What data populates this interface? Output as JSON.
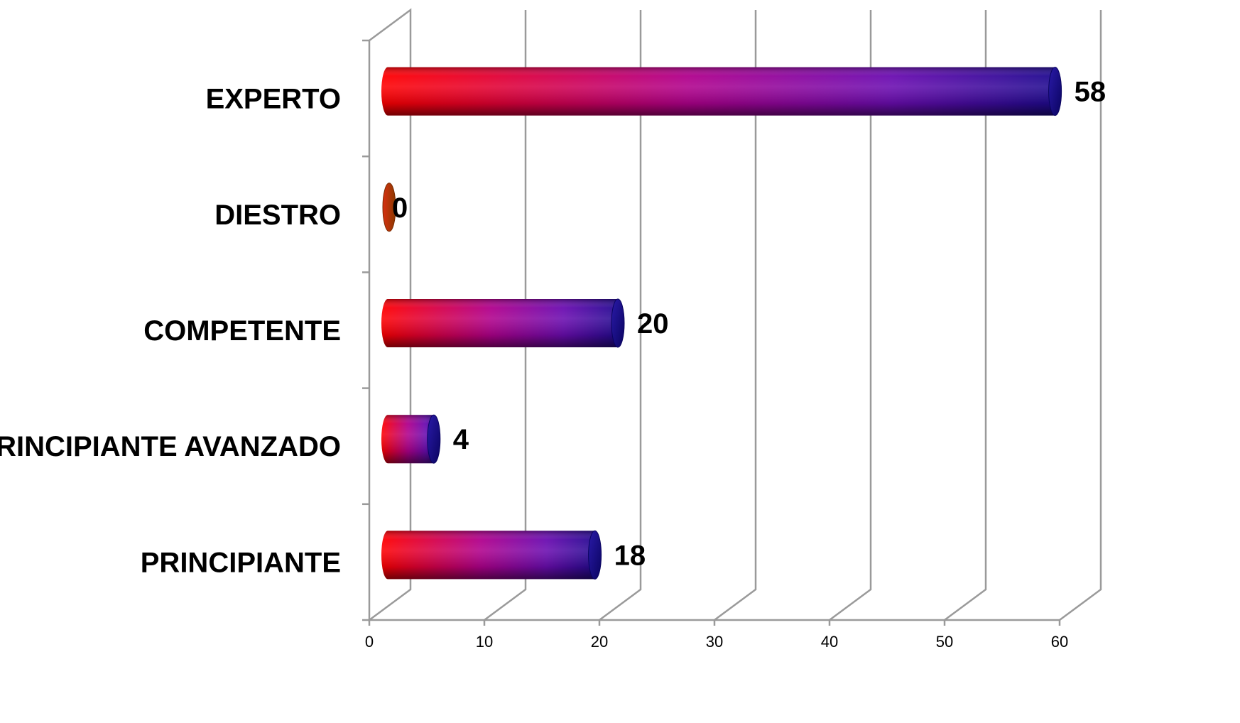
{
  "chart_data": {
    "type": "bar",
    "orientation": "horizontal",
    "style": "3d-cylinder",
    "categories": [
      "PRINCIPIANTE",
      "PRINCIPIANTE AVANZADO",
      "COMPETENTE",
      "DIESTRO",
      "EXPERTO"
    ],
    "values": [
      18,
      4,
      20,
      0,
      58
    ],
    "value_labels": [
      "18",
      "4",
      "20",
      "0",
      "58"
    ],
    "xlim": [
      0,
      60
    ],
    "xticks": [
      "0",
      "10",
      "20",
      "30",
      "40",
      "50",
      "60"
    ],
    "grid": true,
    "legend": "none",
    "title": "",
    "xlabel": "",
    "ylabel": "",
    "colors": {
      "bar_start": "#ff0000",
      "bar_mid": "#a0009a",
      "bar_end": "#1a0a8a",
      "zero_bar": "#c83010",
      "grid": "#9a9a9a"
    }
  }
}
